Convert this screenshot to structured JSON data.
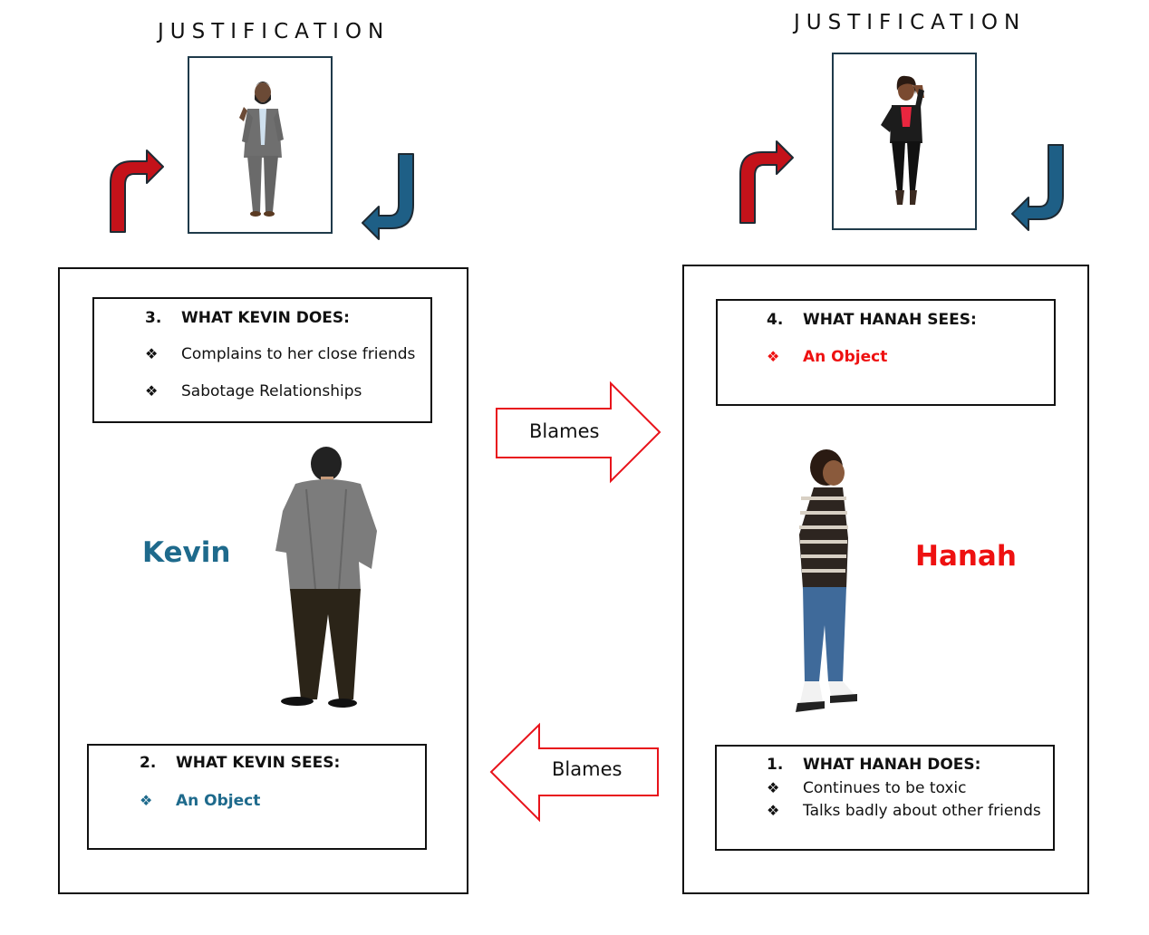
{
  "left": {
    "title": "JUSTIFICATION",
    "name": "Kevin",
    "name_color": "#1e6a8c",
    "does": {
      "number": "3.",
      "heading": "WHAT KEVIN DOES:",
      "items": [
        "Complains to her close friends",
        "Sabotage Relationships"
      ]
    },
    "sees": {
      "number": "2.",
      "heading": "WHAT KEVIN SEES:",
      "item": "An Object",
      "item_color": "#1e6a8c"
    }
  },
  "right": {
    "title": "JUSTIFICATION",
    "name": "Hanah",
    "name_color": "#ee1111",
    "sees": {
      "number": "4.",
      "heading": "WHAT HANAH SEES:",
      "item": "An Object",
      "item_color": "#ee1111"
    },
    "does": {
      "number": "1.",
      "heading": "WHAT HANAH DOES:",
      "items": [
        "Continues to be toxic",
        "Talks badly about other friends"
      ]
    }
  },
  "arrows": {
    "top_label": "Blames",
    "bottom_label": "Blames",
    "outline_color": "#e8131b"
  },
  "icons": {
    "bullet": "❖",
    "cycle_up": "red-curved-arrow-icon",
    "cycle_down": "blue-curved-arrow-icon"
  }
}
